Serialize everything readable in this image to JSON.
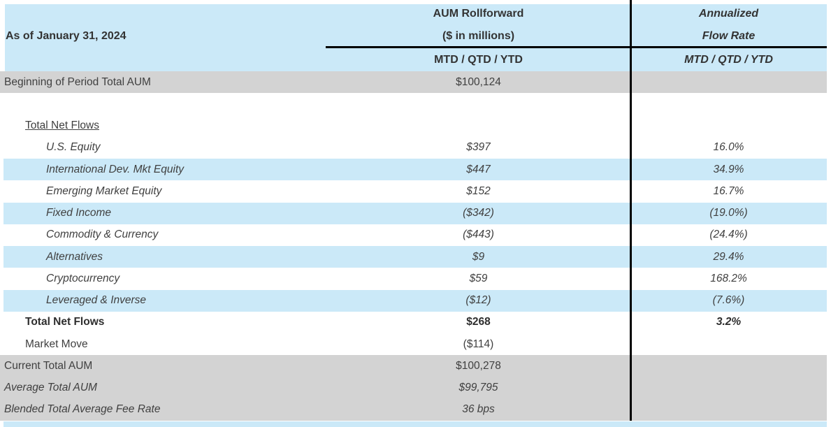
{
  "as_of": "As of January 31, 2024",
  "header": {
    "aum": {
      "line1": "AUM Rollforward",
      "line2": "($ in millions)",
      "period": "MTD / QTD / YTD"
    },
    "flow": {
      "line1": "Annualized",
      "line2": "Flow Rate",
      "period": "MTD / QTD / YTD"
    }
  },
  "rows": [
    {
      "label": "Beginning of Period Total AUM",
      "value": "$100,124",
      "rate": ""
    },
    {
      "label": "",
      "value": "",
      "rate": ""
    },
    {
      "label": "Total Net Flows",
      "value": "",
      "rate": ""
    },
    {
      "label": "U.S. Equity",
      "value": "$397",
      "rate": "16.0%"
    },
    {
      "label": "International Dev. Mkt Equity",
      "value": "$447",
      "rate": "34.9%"
    },
    {
      "label": "Emerging Market Equity",
      "value": "$152",
      "rate": "16.7%"
    },
    {
      "label": "Fixed Income",
      "value": "($342)",
      "rate": "(19.0%)"
    },
    {
      "label": "Commodity & Currency",
      "value": "($443)",
      "rate": "(24.4%)"
    },
    {
      "label": "Alternatives",
      "value": "$9",
      "rate": "29.4%"
    },
    {
      "label": "Cryptocurrency",
      "value": "$59",
      "rate": "168.2%"
    },
    {
      "label": "Leveraged & Inverse",
      "value": "($12)",
      "rate": "(7.6%)"
    },
    {
      "label": "Total Net Flows",
      "value": "$268",
      "rate": "3.2%"
    },
    {
      "label": "Market Move",
      "value": "($114)",
      "rate": ""
    },
    {
      "label": "Current Total AUM",
      "value": "$100,278",
      "rate": ""
    },
    {
      "label": "Average Total AUM",
      "value": "$99,795",
      "rate": ""
    },
    {
      "label": "Blended Total Average Fee Rate",
      "value": "36 bps",
      "rate": ""
    }
  ],
  "colors": {
    "header_bg": "#cbe9f8",
    "stripe_bg": "#cbe9f8",
    "total_row_bg": "#d3d3d3",
    "text": "#404040",
    "divider_line": "#000000"
  }
}
